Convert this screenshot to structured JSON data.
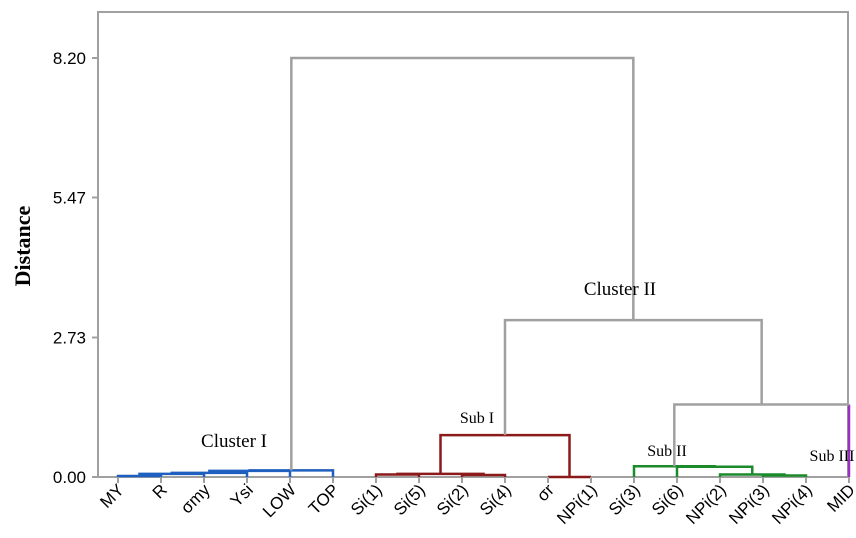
{
  "chart_data": {
    "type": "dendrogram",
    "title": "",
    "ylabel": "Distance",
    "xlabel": "",
    "ylim": [
      0,
      8.2
    ],
    "y_ticks": [
      "0.00",
      "2.73",
      "5.47",
      "8.20"
    ],
    "y_tick_values": [
      0,
      2.73,
      5.47,
      8.2
    ],
    "leaves": [
      "MY",
      "R",
      "σmy",
      "Ysi",
      "LOW",
      "TOP",
      "Si(1)",
      "Si(5)",
      "Si(2)",
      "Si(4)",
      "σr",
      "NPi(1)",
      "Si(3)",
      "Si(6)",
      "NPi(2)",
      "NPi(3)",
      "NPi(4)",
      "MID"
    ],
    "links": [
      {
        "a": "MY",
        "b": "R",
        "height": 0.02,
        "color": "#1f5fbf"
      },
      {
        "a": "MY+R",
        "b": "σmy",
        "height": 0.06,
        "color": "#1f5fbf"
      },
      {
        "a": "MY+R+σmy",
        "b": "Ysi",
        "height": 0.08,
        "color": "#1f5fbf"
      },
      {
        "a": "MY..Ysi",
        "b": "LOW",
        "height": 0.12,
        "color": "#1f5fbf"
      },
      {
        "a": "MY..LOW",
        "b": "TOP",
        "height": 0.13,
        "color": "#1f5fbf"
      },
      {
        "a": "Si(1)",
        "b": "Si(5)",
        "height": 0.05,
        "color": "#8b1a1a"
      },
      {
        "a": "Si(2)",
        "b": "Si(4)",
        "height": 0.04,
        "color": "#8b1a1a"
      },
      {
        "a": "Si(1)+Si(5)",
        "b": "Si(2)+Si(4)",
        "height": 0.06,
        "color": "#8b1a1a"
      },
      {
        "a": "σr",
        "b": "NPi(1)",
        "height": 0.0,
        "color": "#8b1a1a"
      },
      {
        "a": "Si(1)..Si(4)",
        "b": "σr+NPi(1)",
        "height": 0.82,
        "color": "#8b1a1a"
      },
      {
        "a": "NPi(3)",
        "b": "NPi(4)",
        "height": 0.03,
        "color": "#1a8a2a"
      },
      {
        "a": "NPi(2)",
        "b": "NPi(3)+NPi(4)",
        "height": 0.05,
        "color": "#1a8a2a"
      },
      {
        "a": "Si(6)",
        "b": "NPi(2)..NPi(4)",
        "height": 0.2,
        "color": "#1a8a2a"
      },
      {
        "a": "Si(3)",
        "b": "Si(6)..NPi(4)",
        "height": 0.21,
        "color": "#1a8a2a"
      },
      {
        "a": "Si(3)..NPi(4)",
        "b": "MID",
        "height": 1.42,
        "color": "#a0a0a0"
      },
      {
        "a": "Sub I",
        "b": "Si(3)..MID",
        "height": 3.07,
        "color": "#a0a0a0"
      },
      {
        "a": "Cluster I",
        "b": "Cluster II",
        "height": 8.2,
        "color": "#a0a0a0"
      }
    ],
    "annotations": [
      {
        "text": "Cluster I",
        "size": "big"
      },
      {
        "text": "Cluster II",
        "size": "big"
      },
      {
        "text": "Sub I",
        "size": "small"
      },
      {
        "text": "Sub II",
        "size": "small"
      },
      {
        "text": "Sub III",
        "size": "small"
      }
    ],
    "colors": {
      "frame": "#a0a0a0",
      "cluster1": "#1f5fbf",
      "sub1": "#8b1a1a",
      "sub2": "#1a8a2a",
      "sub3": "#9b2fc4",
      "upper": "#a0a0a0"
    }
  }
}
